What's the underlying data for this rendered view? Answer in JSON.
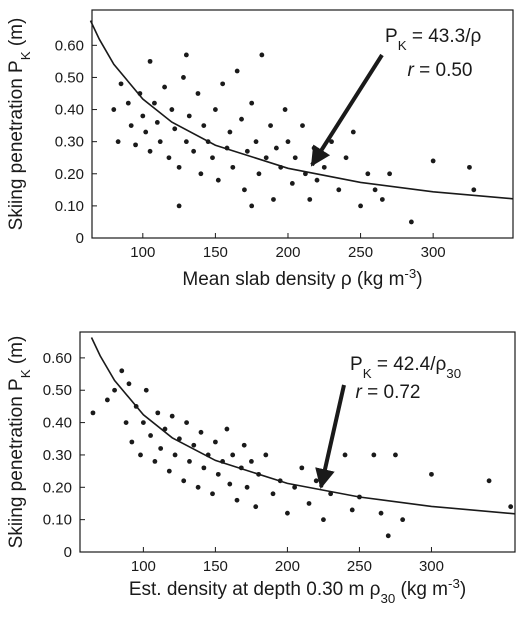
{
  "chart_data": [
    {
      "type": "scatter",
      "color": "#1a1a1a",
      "y_label": "Skiing penetration  P",
      "y_label_sub": "K",
      "y_label_end": " (m)",
      "x_label": "Mean slab density  ρ  (kg m",
      "x_label_sup": "-3",
      "x_label_end": ")",
      "eq_lhs": "P",
      "eq_lhs_sub": "K",
      "eq_rhs": " = 43.3/ρ",
      "r_name": "r",
      "r_value": " = 0.50",
      "xlim": [
        65,
        355
      ],
      "ylim": [
        0,
        0.71
      ],
      "xticks": [
        100,
        150,
        200,
        250,
        300
      ],
      "yticks": [
        0,
        {
          "value": 0.1,
          "label": "0.10"
        },
        {
          "value": 0.2,
          "label": "0.20"
        },
        {
          "value": 0.3,
          "label": "0.30"
        },
        {
          "value": 0.4,
          "label": "0.40"
        },
        {
          "value": 0.5,
          "label": "0.50"
        },
        {
          "value": 0.6,
          "label": "0.60"
        }
      ],
      "x": [
        80,
        83,
        85,
        90,
        92,
        95,
        98,
        100,
        102,
        105,
        105,
        108,
        110,
        112,
        115,
        118,
        120,
        122,
        125,
        128,
        130,
        130,
        132,
        135,
        138,
        140,
        142,
        145,
        148,
        150,
        152,
        155,
        158,
        160,
        162,
        165,
        168,
        170,
        172,
        175,
        178,
        180,
        182,
        185,
        188,
        190,
        192,
        195,
        198,
        200,
        203,
        205,
        210,
        212,
        215,
        218,
        220,
        225,
        230,
        235,
        240,
        245,
        250,
        255,
        260,
        265,
        270,
        285,
        300,
        325,
        328,
        125,
        175
      ],
      "values": [
        0.4,
        0.3,
        0.48,
        0.42,
        0.35,
        0.29,
        0.45,
        0.38,
        0.33,
        0.55,
        0.27,
        0.42,
        0.36,
        0.3,
        0.47,
        0.25,
        0.4,
        0.34,
        0.22,
        0.5,
        0.57,
        0.3,
        0.38,
        0.27,
        0.45,
        0.2,
        0.35,
        0.3,
        0.25,
        0.4,
        0.18,
        0.48,
        0.28,
        0.33,
        0.22,
        0.52,
        0.37,
        0.15,
        0.27,
        0.42,
        0.3,
        0.2,
        0.57,
        0.25,
        0.35,
        0.12,
        0.28,
        0.22,
        0.4,
        0.3,
        0.17,
        0.25,
        0.35,
        0.2,
        0.12,
        0.28,
        0.18,
        0.22,
        0.3,
        0.15,
        0.25,
        0.33,
        0.1,
        0.2,
        0.15,
        0.12,
        0.2,
        0.05,
        0.24,
        0.22,
        0.15,
        0.1,
        0.1
      ],
      "fit": {
        "x": [
          64,
          70,
          80,
          100,
          120,
          150,
          200,
          250,
          300,
          355
        ],
        "values": [
          0.677,
          0.619,
          0.541,
          0.433,
          0.361,
          0.289,
          0.217,
          0.173,
          0.144,
          0.122
        ]
      }
    },
    {
      "type": "scatter",
      "color": "#1a1a1a",
      "y_label": "Skiing penetration  P",
      "y_label_sub": "K",
      "y_label_end": " (m)",
      "x_label": "Est. density at depth 0.30 m   ρ",
      "x_label_sub": "30",
      "x_label_unit": " (kg m",
      "x_label_sup": "-3",
      "x_label_end": ")",
      "eq_lhs": "P",
      "eq_lhs_sub": "K",
      "eq_rhs": " = 42.4/ρ",
      "eq_rhs_sub": "30",
      "r_name": "r",
      "r_value": " = 0.72",
      "xlim": [
        56,
        358
      ],
      "ylim": [
        0,
        0.68
      ],
      "xticks": [
        100,
        150,
        200,
        250,
        300
      ],
      "yticks": [
        0,
        {
          "value": 0.1,
          "label": "0.10"
        },
        {
          "value": 0.2,
          "label": "0.20"
        },
        {
          "value": 0.3,
          "label": "0.30"
        },
        {
          "value": 0.4,
          "label": "0.40"
        },
        {
          "value": 0.5,
          "label": "0.50"
        },
        {
          "value": 0.6,
          "label": "0.60"
        }
      ],
      "x": [
        65,
        75,
        80,
        85,
        88,
        90,
        92,
        95,
        98,
        100,
        102,
        105,
        108,
        110,
        112,
        115,
        118,
        120,
        122,
        125,
        128,
        130,
        132,
        135,
        138,
        140,
        142,
        145,
        148,
        150,
        152,
        155,
        158,
        160,
        162,
        165,
        168,
        170,
        172,
        175,
        178,
        180,
        185,
        190,
        195,
        200,
        205,
        210,
        215,
        220,
        225,
        230,
        240,
        245,
        250,
        260,
        265,
        270,
        275,
        280,
        300,
        340,
        355
      ],
      "values": [
        0.43,
        0.47,
        0.5,
        0.56,
        0.4,
        0.52,
        0.34,
        0.45,
        0.3,
        0.4,
        0.5,
        0.36,
        0.28,
        0.43,
        0.32,
        0.38,
        0.25,
        0.42,
        0.3,
        0.35,
        0.22,
        0.4,
        0.28,
        0.33,
        0.2,
        0.37,
        0.26,
        0.3,
        0.18,
        0.34,
        0.24,
        0.28,
        0.38,
        0.21,
        0.3,
        0.16,
        0.26,
        0.33,
        0.2,
        0.28,
        0.14,
        0.24,
        0.3,
        0.18,
        0.22,
        0.12,
        0.2,
        0.26,
        0.15,
        0.22,
        0.1,
        0.18,
        0.3,
        0.13,
        0.17,
        0.3,
        0.12,
        0.05,
        0.3,
        0.1,
        0.24,
        0.22,
        0.14
      ],
      "fit": {
        "x": [
          64,
          70,
          80,
          100,
          120,
          150,
          200,
          250,
          300,
          358
        ],
        "values": [
          0.663,
          0.606,
          0.53,
          0.424,
          0.353,
          0.283,
          0.212,
          0.17,
          0.141,
          0.118
        ]
      }
    }
  ]
}
